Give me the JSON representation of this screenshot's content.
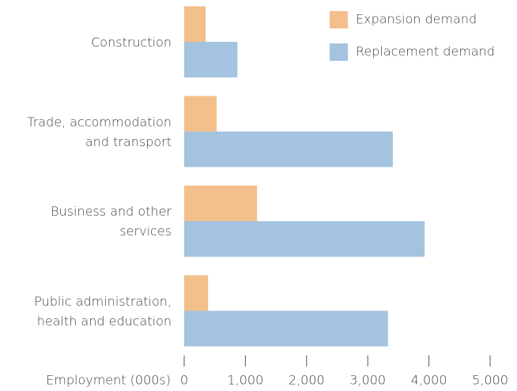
{
  "chart_data": {
    "type": "hbar",
    "categories": [
      "Construction",
      "Trade, accommodation and transport",
      "Business and other services",
      "Public administration, health and education"
    ],
    "series": [
      {
        "name": "Expansion demand",
        "color": "#f3bf8b",
        "values": [
          350,
          530,
          1190,
          390
        ]
      },
      {
        "name": "Replacement demand",
        "color": "#a3c3e0",
        "values": [
          870,
          3410,
          3930,
          3330
        ]
      }
    ],
    "xlabel": "Employment (000s)",
    "xlim": [
      0,
      5000
    ],
    "xticks": [
      0,
      {
        "value": 1000,
        "label": "1,000"
      },
      {
        "value": 2000,
        "label": "2,000"
      },
      {
        "value": 3000,
        "label": "3,000"
      },
      {
        "value": 4000,
        "label": "4,000"
      },
      {
        "value": 5000,
        "label": "5,000"
      }
    ],
    "legend": "upper right"
  }
}
